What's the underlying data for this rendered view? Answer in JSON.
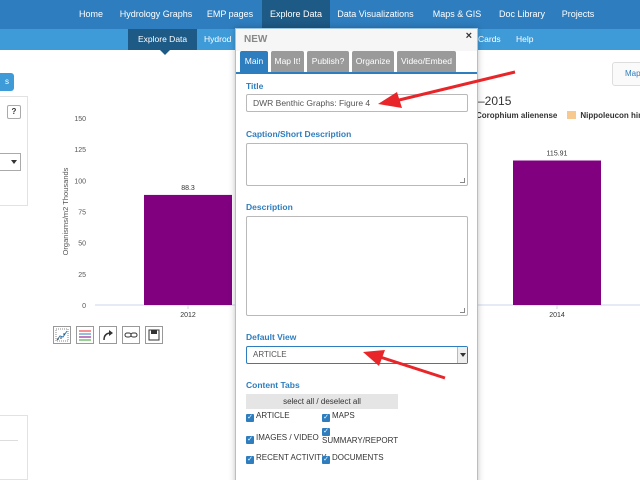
{
  "top_nav": {
    "items": [
      "Home",
      "Hydrology Graphs",
      "EMP pages",
      "Explore Data",
      "Data Visualizations",
      "Maps & GIS",
      "Doc Library",
      "Projects"
    ],
    "active_index": 3
  },
  "sub_nav": {
    "items": [
      "Explore Data",
      "Hydrod",
      "Cards",
      "Help"
    ],
    "active_index": 0
  },
  "left": {
    "help_label": "?",
    "button_label": "s"
  },
  "chart": {
    "title_fragment": "–2015",
    "map_tab_label": "Map",
    "legend": [
      "Corophium alienense",
      "Nippoleucon hinu"
    ]
  },
  "chart_data": {
    "type": "bar",
    "categories": [
      "2012",
      "2014"
    ],
    "values": [
      88.3,
      115.91
    ],
    "value_labels": [
      "88.3",
      "115.91"
    ],
    "ylabel": "Organisms/m2 Thousands",
    "yticks": [
      0,
      25,
      50,
      75,
      100,
      125,
      150
    ],
    "ylim": [
      0,
      150
    ],
    "bar_color": "#800080",
    "grid": false
  },
  "chart_tools": [
    {
      "icon": "scatter-zoom-icon"
    },
    {
      "icon": "lines-legend-icon"
    },
    {
      "icon": "redo-arrow-icon"
    },
    {
      "icon": "link-icon"
    },
    {
      "icon": "save-icon"
    }
  ],
  "modal": {
    "title": "NEW",
    "close_label": "×",
    "tabs": [
      "Main",
      "Map It!",
      "Publish?",
      "Organize",
      "Video/Embed"
    ],
    "active_tab": 0,
    "title_label": "Title",
    "title_value": "DWR Benthic Graphs: Figure 4",
    "caption_label": "Caption/Short Description",
    "caption_value": "",
    "description_label": "Description",
    "description_value": "",
    "default_view_label": "Default View",
    "default_view_value": "ARTICLE",
    "content_tabs_label": "Content Tabs",
    "select_all_label": "select all / deselect all",
    "checkboxes": {
      "article": "ARTICLE",
      "maps": "MAPS",
      "images_video": "IMAGES / VIDEO",
      "summary_report": "SUMMARY/REPORT",
      "recent_activity": "RECENT ACTIVITY",
      "documents": "DOCUMENTS"
    },
    "check_glyph": "✓"
  },
  "colors": {
    "nav_blue": "#2e7dbe",
    "subnav_blue": "#3f9bd8",
    "active_dark": "#1d5a85",
    "tab_gray": "#9a9a9a",
    "annotation_red": "#e8262a"
  }
}
